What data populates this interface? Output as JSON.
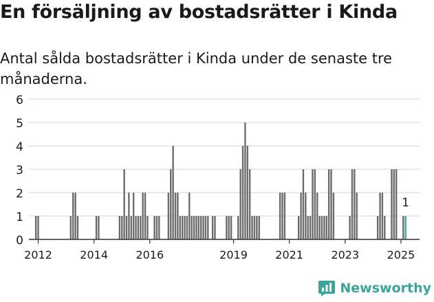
{
  "header": {
    "title": "En försäljning av bostadsrätter i Kinda",
    "subtitle": "Antal sålda bostadsrätter i Kinda under de senaste tre månaderna."
  },
  "brand": {
    "name": "Newsworthy"
  },
  "colors": {
    "bar": "#6b6b6e",
    "highlight": "#3aa69b",
    "grid": "#d4d4d4",
    "axis": "#333333"
  },
  "chart_data": {
    "type": "bar",
    "title": "",
    "xlabel": "",
    "ylabel": "",
    "ylim": [
      0,
      6
    ],
    "yticks": [
      0,
      1,
      2,
      3,
      4,
      5,
      6
    ],
    "xlim": [
      "2011-09",
      "2025-09"
    ],
    "xticks": [
      {
        "label": "2012",
        "date": "2012-01"
      },
      {
        "label": "2014",
        "date": "2014-01"
      },
      {
        "label": "2016",
        "date": "2016-01"
      },
      {
        "label": "2019",
        "date": "2019-01"
      },
      {
        "label": "2021",
        "date": "2021-01"
      },
      {
        "label": "2023",
        "date": "2023-01"
      },
      {
        "label": "2025",
        "date": "2025-01"
      }
    ],
    "grid": true,
    "annotation": {
      "label": "1",
      "date": "2025-03"
    },
    "series": [
      {
        "points": [
          {
            "date": "2011-12",
            "value": 1
          },
          {
            "date": "2012-01",
            "value": 1
          },
          {
            "date": "2013-03",
            "value": 1
          },
          {
            "date": "2013-04",
            "value": 2
          },
          {
            "date": "2013-05",
            "value": 2
          },
          {
            "date": "2013-06",
            "value": 1
          },
          {
            "date": "2014-02",
            "value": 1
          },
          {
            "date": "2014-03",
            "value": 1
          },
          {
            "date": "2014-12",
            "value": 1
          },
          {
            "date": "2015-01",
            "value": 1
          },
          {
            "date": "2015-02",
            "value": 3
          },
          {
            "date": "2015-03",
            "value": 1
          },
          {
            "date": "2015-04",
            "value": 2
          },
          {
            "date": "2015-05",
            "value": 1
          },
          {
            "date": "2015-06",
            "value": 2
          },
          {
            "date": "2015-07",
            "value": 1
          },
          {
            "date": "2015-08",
            "value": 1
          },
          {
            "date": "2015-09",
            "value": 1
          },
          {
            "date": "2015-10",
            "value": 2
          },
          {
            "date": "2015-11",
            "value": 2
          },
          {
            "date": "2015-12",
            "value": 1
          },
          {
            "date": "2016-03",
            "value": 1
          },
          {
            "date": "2016-04",
            "value": 1
          },
          {
            "date": "2016-05",
            "value": 1
          },
          {
            "date": "2016-09",
            "value": 2
          },
          {
            "date": "2016-10",
            "value": 3
          },
          {
            "date": "2016-11",
            "value": 4
          },
          {
            "date": "2016-12",
            "value": 2
          },
          {
            "date": "2017-01",
            "value": 2
          },
          {
            "date": "2017-02",
            "value": 1
          },
          {
            "date": "2017-03",
            "value": 1
          },
          {
            "date": "2017-04",
            "value": 1
          },
          {
            "date": "2017-05",
            "value": 1
          },
          {
            "date": "2017-06",
            "value": 2
          },
          {
            "date": "2017-07",
            "value": 1
          },
          {
            "date": "2017-08",
            "value": 1
          },
          {
            "date": "2017-09",
            "value": 1
          },
          {
            "date": "2017-10",
            "value": 1
          },
          {
            "date": "2017-11",
            "value": 1
          },
          {
            "date": "2017-12",
            "value": 1
          },
          {
            "date": "2018-01",
            "value": 1
          },
          {
            "date": "2018-02",
            "value": 1
          },
          {
            "date": "2018-04",
            "value": 1
          },
          {
            "date": "2018-05",
            "value": 1
          },
          {
            "date": "2018-10",
            "value": 1
          },
          {
            "date": "2018-11",
            "value": 1
          },
          {
            "date": "2018-12",
            "value": 1
          },
          {
            "date": "2019-03",
            "value": 1
          },
          {
            "date": "2019-04",
            "value": 3
          },
          {
            "date": "2019-05",
            "value": 4
          },
          {
            "date": "2019-06",
            "value": 5
          },
          {
            "date": "2019-07",
            "value": 4
          },
          {
            "date": "2019-08",
            "value": 3
          },
          {
            "date": "2019-09",
            "value": 1
          },
          {
            "date": "2019-10",
            "value": 1
          },
          {
            "date": "2019-11",
            "value": 1
          },
          {
            "date": "2019-12",
            "value": 1
          },
          {
            "date": "2020-09",
            "value": 2
          },
          {
            "date": "2020-10",
            "value": 2
          },
          {
            "date": "2020-11",
            "value": 2
          },
          {
            "date": "2021-05",
            "value": 1
          },
          {
            "date": "2021-06",
            "value": 2
          },
          {
            "date": "2021-07",
            "value": 3
          },
          {
            "date": "2021-08",
            "value": 2
          },
          {
            "date": "2021-09",
            "value": 1
          },
          {
            "date": "2021-10",
            "value": 1
          },
          {
            "date": "2021-11",
            "value": 3
          },
          {
            "date": "2021-12",
            "value": 3
          },
          {
            "date": "2022-01",
            "value": 2
          },
          {
            "date": "2022-02",
            "value": 1
          },
          {
            "date": "2022-03",
            "value": 1
          },
          {
            "date": "2022-04",
            "value": 1
          },
          {
            "date": "2022-05",
            "value": 1
          },
          {
            "date": "2022-06",
            "value": 3
          },
          {
            "date": "2022-07",
            "value": 3
          },
          {
            "date": "2022-08",
            "value": 2
          },
          {
            "date": "2023-03",
            "value": 1
          },
          {
            "date": "2023-04",
            "value": 3
          },
          {
            "date": "2023-05",
            "value": 3
          },
          {
            "date": "2023-06",
            "value": 2
          },
          {
            "date": "2024-03",
            "value": 1
          },
          {
            "date": "2024-04",
            "value": 2
          },
          {
            "date": "2024-05",
            "value": 2
          },
          {
            "date": "2024-06",
            "value": 1
          },
          {
            "date": "2024-09",
            "value": 3
          },
          {
            "date": "2024-10",
            "value": 3
          },
          {
            "date": "2024-11",
            "value": 3
          },
          {
            "date": "2025-02",
            "value": 1
          },
          {
            "date": "2025-03",
            "value": 1
          }
        ]
      }
    ]
  }
}
